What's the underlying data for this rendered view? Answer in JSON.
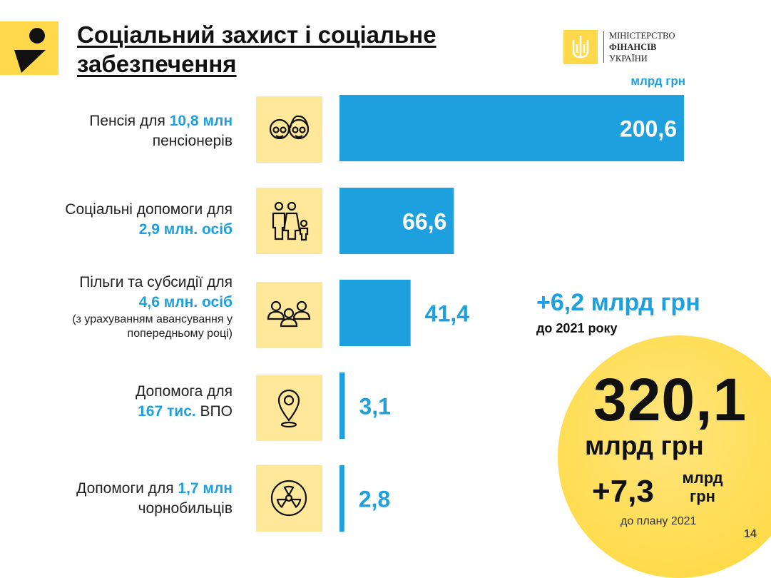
{
  "title": [
    "Соціальний захист і соціальне",
    "забезпечення"
  ],
  "ministry": {
    "line1": "МІНІСТЕРСТВО",
    "line2": "ФІНАНСІВ",
    "line3": "УКРАЇНИ"
  },
  "unit": "млрд грн",
  "rows": [
    {
      "pre": "Пенсія для ",
      "hl": "10,8 млн",
      "post": "пенсіонерів",
      "note": "",
      "icon": "elderly-couple-icon"
    },
    {
      "pre": "Соціальні допомоги для",
      "hl": "2,9 млн. осіб",
      "post": "",
      "note": "",
      "icon": "family-icon"
    },
    {
      "pre": "Пільги та субсидії для",
      "hl": "4,6 млн. осіб",
      "post": "",
      "note": "(з урахуванням авансування у попередньому році)",
      "note1": "(з урахуванням авансування у",
      "note2": "попередньому році)",
      "icon": "group-icon"
    },
    {
      "pre": "Допомога для",
      "hl": "167 тис.",
      "post": " ВПО",
      "note": "",
      "icon": "location-pin-icon"
    },
    {
      "pre": "Допомоги для ",
      "hl": "1,7 млн",
      "post": "чорнобильців",
      "note": "",
      "icon": "radiation-icon"
    }
  ],
  "callout": {
    "delta": "+6,2  млрд  грн",
    "delta_sub": "до 2021 року"
  },
  "summary": {
    "total": "320,1",
    "total_unit": "млрд грн",
    "plus": "+7,3",
    "plus_unit1": "млрд",
    "plus_unit2": "грн",
    "plus_note": "до плану 2021"
  },
  "page_number": "14",
  "colors": {
    "bar": "#1E9FDE",
    "accent_yellow": "#FFD94A",
    "icon_bg": "#FFE89A"
  },
  "chart_data": {
    "type": "bar",
    "orientation": "horizontal",
    "categories": [
      "Пенсія для 10,8 млн пенсіонерів",
      "Соціальні допомоги для 2,9 млн. осіб",
      "Пільги та субсидії для 4,6 млн. осіб",
      "Допомога для 167 тис. ВПО",
      "Допомоги для 1,7 млн чорнобильців"
    ],
    "values": [
      200.6,
      66.6,
      41.4,
      3.1,
      2.8
    ],
    "value_labels": [
      "200,6",
      "66,6",
      "41,4",
      "3,1",
      "2,8"
    ],
    "ylabel": "млрд грн",
    "grid": false
  }
}
